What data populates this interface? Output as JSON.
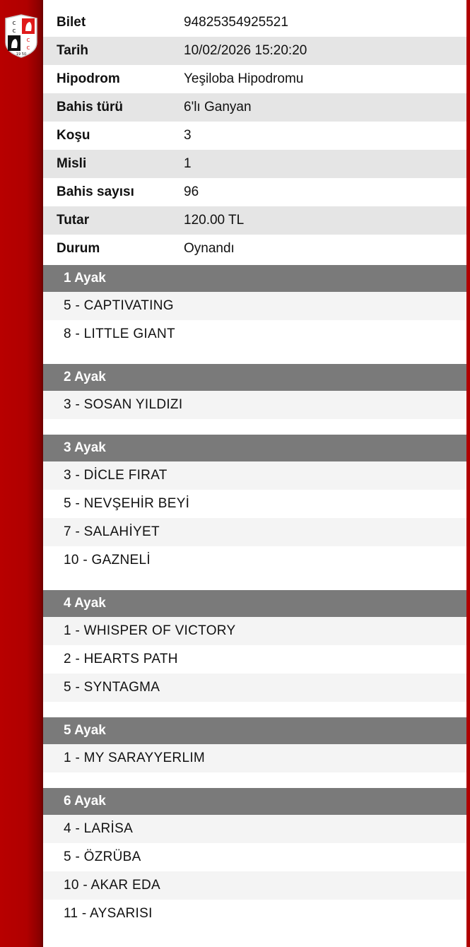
{
  "logo": {
    "text": "CC 1950"
  },
  "details": [
    {
      "label": "Bilet",
      "value": "94825354925521"
    },
    {
      "label": "Tarih",
      "value": "10/02/2026 15:20:20"
    },
    {
      "label": "Hipodrom",
      "value": "Yeşiloba Hipodromu"
    },
    {
      "label": "Bahis türü",
      "value": "6'lı Ganyan"
    },
    {
      "label": "Koşu",
      "value": "3"
    },
    {
      "label": "Misli",
      "value": "1"
    },
    {
      "label": "Bahis sayısı",
      "value": "96"
    },
    {
      "label": "Tutar",
      "value": "120.00 TL"
    },
    {
      "label": "Durum",
      "value": "Oynandı"
    }
  ],
  "legs": [
    {
      "title": "1 Ayak",
      "horses": [
        "5 - CAPTIVATING",
        "8 - LITTLE GIANT"
      ]
    },
    {
      "title": "2 Ayak",
      "horses": [
        "3 - SOSAN YILDIZI"
      ]
    },
    {
      "title": "3 Ayak",
      "horses": [
        "3 - DİCLE FIRAT",
        "5 - NEVŞEHİR BEYİ",
        "7 - SALAHİYET",
        "10 - GAZNELİ"
      ]
    },
    {
      "title": "4 Ayak",
      "horses": [
        "1 - WHISPER OF VICTORY",
        "2 - HEARTS PATH",
        "5 - SYNTAGMA"
      ]
    },
    {
      "title": "5 Ayak",
      "horses": [
        "1 - MY SARAYYERLIM"
      ]
    },
    {
      "title": "6 Ayak",
      "horses": [
        "4 - LARİSA",
        "5 - ÖZRÜBA",
        "10 - AKAR EDA",
        "11 - AYSARISI"
      ]
    }
  ]
}
